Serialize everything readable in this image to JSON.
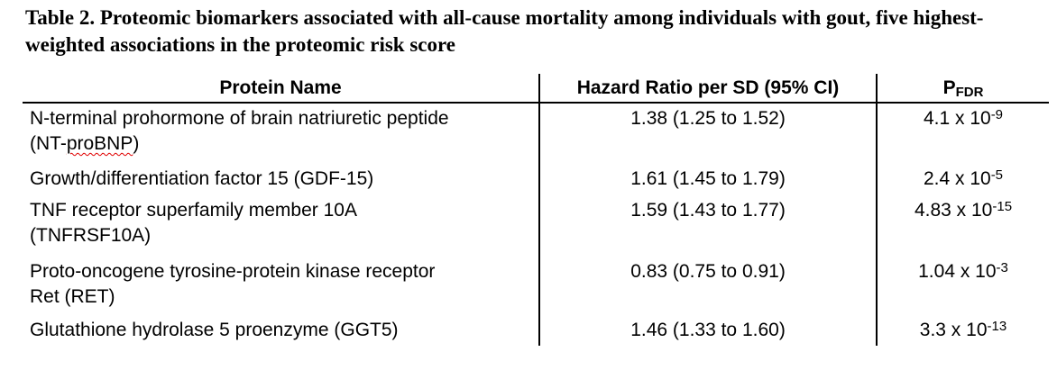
{
  "caption": {
    "line1": "Table 2. Proteomic biomarkers associated with all-cause mortality among individuals with gout, five highest-",
    "line2": "weighted associations in the proteomic risk score"
  },
  "table": {
    "headers": {
      "protein": "Protein Name",
      "hazard_ratio": "Hazard Ratio per SD (95% CI)",
      "p_label": "P",
      "p_subscript": "FDR"
    },
    "rows": [
      {
        "name_line1": "N-terminal prohormone of brain natriuretic peptide",
        "name_line2_pre": "(NT-",
        "name_line2_misspelled": "proBNP",
        "name_line2_post": ")",
        "hazard_ratio": "1.38 (1.25 to 1.52)",
        "p_mantissa": "4.1 x 10",
        "p_exponent": "-9"
      },
      {
        "name_line1": "Growth/differentiation factor 15 (GDF-15)",
        "hazard_ratio": "1.61 (1.45 to 1.79)",
        "p_mantissa": "2.4 x 10",
        "p_exponent": "-5"
      },
      {
        "name_line1": "TNF receptor superfamily member 10A",
        "name_line2": "(TNFRSF10A)",
        "hazard_ratio": "1.59 (1.43 to 1.77)",
        "p_mantissa": "4.83 x 10",
        "p_exponent": "-15"
      },
      {
        "name_line1": "Proto-oncogene tyrosine-protein kinase receptor",
        "name_line2": "Ret (RET)",
        "hazard_ratio": "0.83 (0.75 to 0.91)",
        "p_mantissa": "1.04 x 10",
        "p_exponent": "-3"
      },
      {
        "name_line1": "Glutathione hydrolase 5 proenzyme (GGT5)",
        "hazard_ratio": "1.46 (1.33 to 1.60)",
        "p_mantissa": "3.3 x 10",
        "p_exponent": "-13"
      }
    ]
  },
  "colors": {
    "text": "#000000",
    "background": "#ffffff",
    "table_lines": "#000000",
    "spellcheck_underline": "#e00000"
  }
}
